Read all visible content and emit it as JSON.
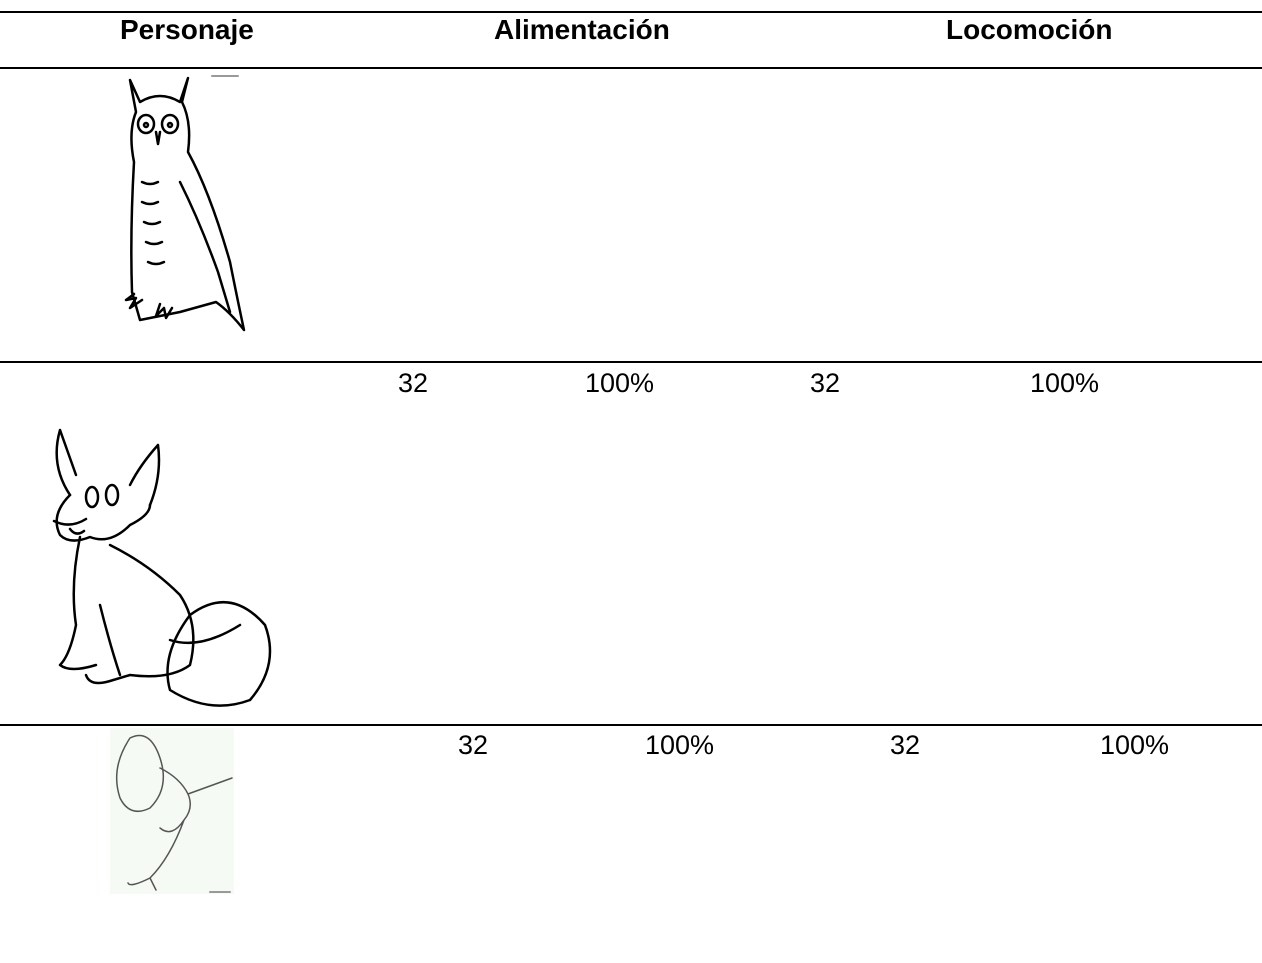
{
  "table": {
    "headers": [
      "Personaje",
      "Alimentación",
      "Locomoción"
    ],
    "rows": [
      {
        "values": []
      },
      {
        "values": [
          "32",
          "100%",
          "32",
          "100%"
        ]
      },
      {
        "values": [
          "32",
          "100%",
          "32",
          "100%"
        ]
      }
    ]
  }
}
